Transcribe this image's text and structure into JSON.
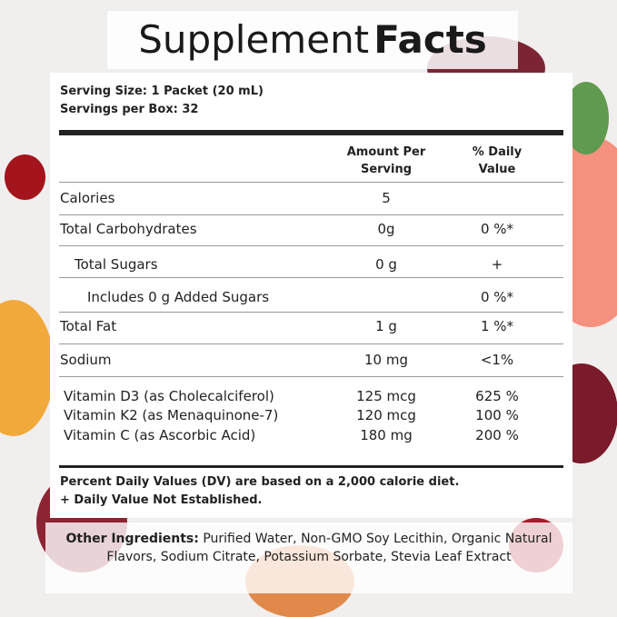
{
  "header": {
    "title_light": "Supplement",
    "title_bold": "Facts"
  },
  "serving": [
    "Serving Size: 1 Packet (20 mL)",
    "Servings per Box: 32"
  ],
  "table": {
    "columns": [
      "Amount Per Serving",
      "% Daily Value"
    ],
    "rows": [
      {
        "name": "Calories",
        "amount": "5"
      },
      {
        "name": "Total Carbohydrates",
        "amount": "0g",
        "dv": "0 %*"
      },
      {
        "name": "Total Sugars",
        "amount": "0 g",
        "dv": "+"
      },
      {
        "name": "Includes 0 g Added Sugars",
        "dv": "0 %*"
      },
      {
        "name": "Total Fat",
        "amount": "1 g",
        "dv": "1 %*"
      },
      {
        "name": "Sodium",
        "amount": "10 mg",
        "dv": "<1%"
      },
      {
        "name": "Vitamin D3 (as Cholecalciferol)",
        "amount": "125 mcg",
        "dv": "625 %"
      },
      {
        "name": "Vitamin K2 (as Menaquinone-7)",
        "amount": "120 mcg",
        "dv": "100 %"
      },
      {
        "name": "Vitamin C (as Ascorbic Acid)",
        "amount": "180 mg",
        "dv": "200 %"
      }
    ]
  },
  "footnotes": [
    "Percent Daily Values (DV) are based on a 2,000 calorie diet.",
    "+ Daily Value Not Established."
  ],
  "other_ingredients": {
    "label": "Other Ingredients:",
    "text": "Purified Water, Non-GMO Soy Lecithin, Organic Natural Flavors, Sodium Citrate, Potassium Sorbate, Stevia Leaf Extract"
  }
}
